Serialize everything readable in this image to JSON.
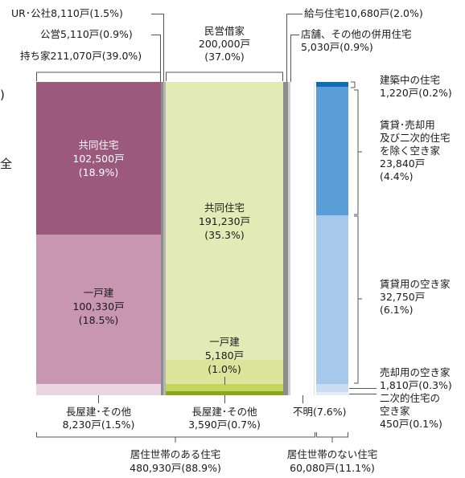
{
  "colors": {
    "owned_condo": "#9b5a7d",
    "owned_detached": "#c896b0",
    "owned_row": "#ead6e0",
    "public": "#8c8c8c",
    "rented_condo": "#e2eab5",
    "rented_detached": "#c4d65e",
    "rented_row": "#8aa51e",
    "salaried": "#8c8c8c",
    "unknown": "#ffffff",
    "vac_construction": "#0f6cb3",
    "vac_other": "#5a9dd7",
    "vac_rental": "#a6c9eb",
    "vac_sale": "#c9ddf3",
    "vac_secondary": "#e3edf8"
  },
  "top": {
    "ur": "UR･公社8,110戸(1.5%)",
    "public": "公営5,110戸(0.9%)",
    "owned": "持ち家211,070戸(39.0%)",
    "rented_name": "民営借家",
    "rented_count": "200,000戸",
    "rented_pct": "(37.0%)",
    "salaried": "給与住宅10,680戸(2.0%)",
    "shop_name": "店舗、その他の併用住宅",
    "shop_count": "5,030戸(0.9%)"
  },
  "owned": {
    "condo_name": "共同住宅",
    "condo_count": "102,500戸",
    "condo_pct": "(18.9%)",
    "detached_name": "一戸建",
    "detached_count": "100,330戸",
    "detached_pct": "(18.5%)"
  },
  "rented": {
    "condo_name": "共同住宅",
    "condo_count": "191,230戸",
    "condo_pct": "(35.3%)",
    "detached_name": "一戸建",
    "detached_count": "5,180戸",
    "detached_pct": "(1.0%)"
  },
  "vacant": {
    "construction_name": "建築中の住宅",
    "construction_val": "1,220戸(0.2%)",
    "other_l1": "賃貸･売却用",
    "other_l2": "及び二次的住宅",
    "other_l3": "を除く空き家",
    "other_count": "23,840戸",
    "other_pct": "(4.4%)",
    "rental_name": "賃貸用の空き家",
    "rental_count": "32,750戸",
    "rental_pct": "(6.1%)",
    "sale_name": "売却用の空き家",
    "sale_val": "1,810戸(0.3%)",
    "secondary_l1": "二次的住宅の",
    "secondary_l2": "空き家",
    "secondary_val": "450戸(0.1%)"
  },
  "bottom": {
    "owned_row_name": "長屋建･その他",
    "owned_row_val": "8,230戸(1.5%)",
    "rented_row_name": "長屋建･その他",
    "rented_row_val": "3,590戸(0.7%)",
    "unknown": "不明(7.6%)",
    "occupied_name": "居住世帯のある住宅",
    "occupied_val": "480,930戸(88.9%)",
    "unoccupied_name": "居住世帯のない住宅",
    "unoccupied_val": "60,080戸(11.1%)"
  },
  "side_fragments": {
    "paren": ")",
    "kanji": "全"
  }
}
